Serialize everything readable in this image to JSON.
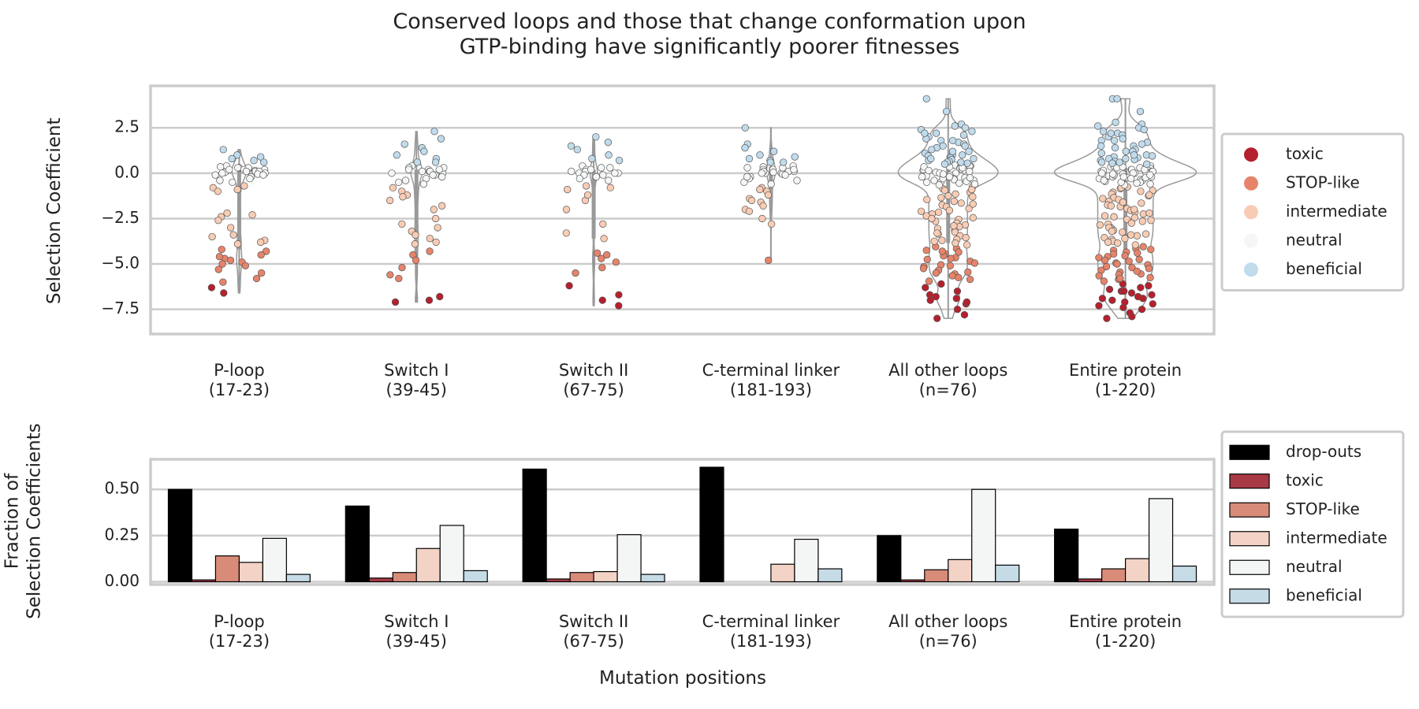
{
  "chart_data": [
    {
      "type": "strip",
      "title": "Conserved loops and those that change conformation upon\nGTP-binding have significantly poorer fitnesses",
      "ylabel": "Selection Coefficient",
      "categories": [
        "P-loop\n(17-23)",
        "Switch I\n(39-45)",
        "Switch II\n(67-75)",
        "C-terminal linker\n(181-193)",
        "All other loops\n(n=76)",
        "Entire protein\n(1-220)"
      ],
      "ylim": [
        -8.86,
        4.81
      ],
      "yticks": [
        {
          "value": 2.5,
          "label": "2.5"
        },
        {
          "value": 0,
          "label": "0.0"
        },
        {
          "value": -2.5,
          "label": "−2.5"
        },
        {
          "value": -5,
          "label": "−5.0"
        },
        {
          "value": -7.5,
          "label": "−7.5"
        }
      ],
      "grid": true,
      "legend": "center right",
      "series": [
        {
          "name": "toxic",
          "color": "#b5202e",
          "values": [
            [
              -6.3,
              -6.6
            ],
            [
              -6.8,
              -7.0,
              -7.1
            ],
            [
              -6.2,
              -6.7,
              -7.0,
              -7.3
            ],
            [],
            [
              -6.1,
              -6.3,
              -6.5,
              -6.7,
              -6.9,
              -7.0,
              -7.2,
              -7.5,
              -7.8,
              -8.0,
              -6.8,
              -7.1
            ],
            [
              -6.1,
              -6.2,
              -6.3,
              -6.4,
              -6.5,
              -6.6,
              -6.7,
              -6.8,
              -6.9,
              -7.0,
              -7.1,
              -7.2,
              -7.3,
              -7.5,
              -7.7,
              -7.9,
              -8.0,
              -6.5,
              -6.9,
              -7.4
            ]
          ]
        },
        {
          "name": "STOP-like",
          "color": "#e6846a",
          "values": [
            [
              -4.2,
              -4.3,
              -4.5,
              -4.7,
              -4.8,
              -4.9,
              -5.0,
              -5.1,
              -4.6,
              -5.3,
              -5.5,
              -5.8,
              -6.0
            ],
            [
              -4.3,
              -4.5,
              -4.8,
              -5.2,
              -5.6,
              -5.8
            ],
            [
              -4.4,
              -4.7,
              -4.9,
              -5.2,
              -5.5,
              -4.5
            ],
            [
              -4.8
            ],
            [
              -4.05,
              -4.15,
              -4.25,
              -4.35,
              -4.45,
              -4.55,
              -4.65,
              -4.75,
              -4.85,
              -4.95,
              -5.05,
              -5.15,
              -5.25,
              -5.35,
              -5.45,
              -5.55,
              -5.65,
              -5.75,
              -5.85,
              -5.95,
              -4.3,
              -4.7,
              -5.1,
              -5.5
            ],
            [
              -4.05,
              -4.15,
              -4.25,
              -4.35,
              -4.45,
              -4.55,
              -4.65,
              -4.75,
              -4.85,
              -4.95,
              -5.05,
              -5.15,
              -5.25,
              -5.35,
              -5.45,
              -5.55,
              -5.65,
              -5.75,
              -5.85,
              -5.95,
              -4.2,
              -4.4,
              -4.6,
              -4.8,
              -5.0,
              -5.2,
              -5.4,
              -5.6,
              -5.8
            ]
          ]
        },
        {
          "name": "intermediate",
          "color": "#f8ccb4",
          "values": [
            [
              -0.8,
              -0.9,
              -0.7,
              -1.0,
              -2.3,
              -2.4,
              -2.6,
              -2.2,
              -3.0,
              -3.5,
              -3.7,
              -3.8,
              -3.9,
              -3.4
            ],
            [
              -0.8,
              -1.0,
              -1.2,
              -1.5,
              -1.8,
              -2.0,
              -2.8,
              -3.0,
              -3.2,
              -3.4,
              -3.6,
              -3.8,
              -3.9,
              -1.3,
              -2.5
            ],
            [
              -0.7,
              -0.9,
              -1.5,
              -2.0,
              -2.8,
              -3.3,
              -3.6,
              -1.2,
              -0.8
            ],
            [
              -0.8,
              -0.9,
              -1.0,
              -1.2,
              -1.4,
              -1.5,
              -1.6,
              -1.8,
              -2.0,
              -2.1,
              -2.5,
              -2.8
            ],
            [
              -0.75,
              -0.85,
              -0.95,
              -1.05,
              -1.15,
              -1.25,
              -1.35,
              -1.45,
              -1.55,
              -1.65,
              -1.75,
              -1.85,
              -1.95,
              -2.05,
              -2.15,
              -2.25,
              -2.35,
              -2.45,
              -2.55,
              -2.65,
              -2.75,
              -2.85,
              -2.95,
              -3.05,
              -3.15,
              -3.25,
              -3.35,
              -3.45,
              -3.55,
              -3.65,
              -3.75,
              -3.85,
              -3.95,
              -0.9,
              -1.3,
              -1.7,
              -2.1,
              -2.5,
              -2.9,
              -3.3,
              -3.7
            ],
            [
              -0.75,
              -0.85,
              -0.95,
              -1.05,
              -1.15,
              -1.25,
              -1.35,
              -1.45,
              -1.55,
              -1.65,
              -1.75,
              -1.85,
              -1.95,
              -2.05,
              -2.15,
              -2.25,
              -2.35,
              -2.45,
              -2.55,
              -2.65,
              -2.75,
              -2.85,
              -2.95,
              -3.05,
              -3.15,
              -3.25,
              -3.35,
              -3.45,
              -3.55,
              -3.65,
              -3.75,
              -3.85,
              -3.95,
              -0.8,
              -1.0,
              -1.2,
              -1.4,
              -1.6,
              -1.8,
              -2.0,
              -2.2,
              -2.4,
              -2.6,
              -2.8,
              -3.0,
              -3.2,
              -3.4,
              -3.6,
              -3.8
            ]
          ]
        },
        {
          "name": "neutral",
          "color": "#f5f6f6",
          "values": [
            [
              0.4,
              0.3,
              0.35,
              0.3,
              0.25,
              0.2,
              0.2,
              0.15,
              0.1,
              0.1,
              0.05,
              0.0,
              0.0,
              -0.05,
              -0.1,
              -0.1,
              -0.2,
              -0.3,
              -0.4,
              -0.5,
              0.3,
              0.2,
              0.1
            ],
            [
              0.4,
              0.3,
              0.2,
              0.2,
              0.1,
              0.1,
              0.0,
              0.0,
              -0.1,
              -0.2,
              -0.3,
              -0.4,
              -0.5,
              -0.6,
              0.3,
              0.1,
              -0.1,
              0.2
            ],
            [
              0.4,
              0.3,
              0.2,
              0.1,
              0.1,
              0.0,
              0.0,
              -0.1,
              -0.2,
              -0.3,
              -0.4,
              0.2,
              0.3,
              -0.1,
              0.0
            ],
            [
              0.4,
              0.35,
              0.3,
              0.2,
              0.2,
              0.1,
              0.1,
              0.05,
              0.0,
              0.0,
              -0.05,
              -0.1,
              -0.2,
              -0.3,
              -0.4,
              -0.5,
              -0.6,
              0.3,
              0.2,
              0.1,
              0.0,
              -0.2
            ],
            [
              0.45,
              0.4,
              0.35,
              0.3,
              0.25,
              0.2,
              0.15,
              0.1,
              0.05,
              0.0,
              -0.05,
              -0.1,
              -0.15,
              -0.2,
              -0.25,
              -0.3,
              -0.35,
              -0.4,
              -0.45,
              -0.5,
              -0.55,
              -0.6,
              -0.65,
              0.4,
              0.3,
              0.2,
              0.1,
              0.0,
              -0.1,
              -0.2,
              -0.3,
              -0.4,
              -0.5,
              0.35,
              0.15,
              -0.05,
              -0.25
            ],
            [
              0.45,
              0.4,
              0.35,
              0.3,
              0.25,
              0.2,
              0.15,
              0.1,
              0.05,
              0.0,
              -0.05,
              -0.1,
              -0.15,
              -0.2,
              -0.25,
              -0.3,
              -0.35,
              -0.4,
              -0.45,
              -0.5,
              -0.55,
              -0.6,
              -0.65,
              0.4,
              0.3,
              0.2,
              0.1,
              0.0,
              -0.1,
              -0.2,
              -0.3,
              -0.4,
              -0.5,
              0.35,
              0.15,
              -0.05,
              -0.25,
              0.3,
              0.2,
              0.1,
              0.0,
              -0.1,
              -0.2
            ]
          ]
        },
        {
          "name": "beneficial",
          "color": "#c0dbec",
          "values": [
            [
              1.3,
              1.0,
              0.9,
              0.8,
              0.7,
              0.6
            ],
            [
              2.3,
              1.9,
              1.6,
              1.4,
              1.2,
              1.0,
              0.8,
              0.6,
              0.6
            ],
            [
              2.0,
              1.7,
              1.5,
              1.3,
              1.0,
              0.8,
              0.7
            ],
            [
              2.5,
              1.6,
              1.4,
              1.2,
              1.0,
              0.9,
              0.8,
              0.7,
              0.6,
              0.6
            ],
            [
              4.1,
              3.4,
              2.7,
              2.6,
              2.5,
              2.4,
              2.3,
              2.2,
              2.1,
              2.0,
              1.9,
              1.8,
              1.7,
              1.6,
              1.5,
              1.4,
              1.3,
              1.2,
              1.1,
              1.0,
              0.95,
              0.9,
              0.85,
              0.8,
              0.75,
              0.7,
              0.65,
              0.6,
              0.55,
              0.5,
              2.2,
              1.8,
              1.5,
              1.2,
              1.0,
              0.8,
              0.6
            ],
            [
              4.1,
              4.1,
              3.4,
              2.8,
              2.7,
              2.6,
              2.5,
              2.4,
              2.3,
              2.2,
              2.1,
              2.0,
              1.9,
              1.8,
              1.7,
              1.6,
              1.5,
              1.4,
              1.3,
              1.2,
              1.1,
              1.0,
              0.95,
              0.9,
              0.85,
              0.8,
              0.75,
              0.7,
              0.65,
              0.6,
              0.55,
              0.5,
              2.2,
              1.8,
              1.5,
              1.2,
              1.0,
              0.8,
              0.6
            ]
          ]
        }
      ]
    },
    {
      "type": "bar",
      "ylabel": "Fraction of\nSelection Coefficients",
      "xlabel": "Mutation positions",
      "categories": [
        "P-loop\n(17-23)",
        "Switch I\n(39-45)",
        "Switch II\n(67-75)",
        "C-terminal linker\n(181-193)",
        "All other loops\n(n=76)",
        "Entire protein\n(1-220)"
      ],
      "ylim": [
        -0.015,
        0.663
      ],
      "yticks": [
        {
          "value": 0,
          "label": "0.00"
        },
        {
          "value": 0.25,
          "label": "0.25"
        },
        {
          "value": 0.5,
          "label": "0.50"
        }
      ],
      "grid": true,
      "legend": "center right",
      "series": [
        {
          "name": "drop-outs",
          "color": "#000000",
          "values": [
            0.5,
            0.41,
            0.61,
            0.62,
            0.25,
            0.285
          ]
        },
        {
          "name": "toxic",
          "color": "#a83a45",
          "values": [
            0.01,
            0.02,
            0.015,
            0,
            0.01,
            0.015
          ]
        },
        {
          "name": "STOP-like",
          "color": "#d98b7a",
          "values": [
            0.14,
            0.05,
            0.05,
            0,
            0.065,
            0.07
          ]
        },
        {
          "name": "intermediate",
          "color": "#f3d3c6",
          "values": [
            0.105,
            0.18,
            0.055,
            0.095,
            0.12,
            0.125
          ]
        },
        {
          "name": "neutral",
          "color": "#f4f6f6",
          "values": [
            0.235,
            0.305,
            0.255,
            0.23,
            0.5,
            0.45
          ]
        },
        {
          "name": "beneficial",
          "color": "#c5dbe6",
          "values": [
            0.04,
            0.06,
            0.04,
            0.07,
            0.09,
            0.085
          ]
        }
      ]
    }
  ]
}
